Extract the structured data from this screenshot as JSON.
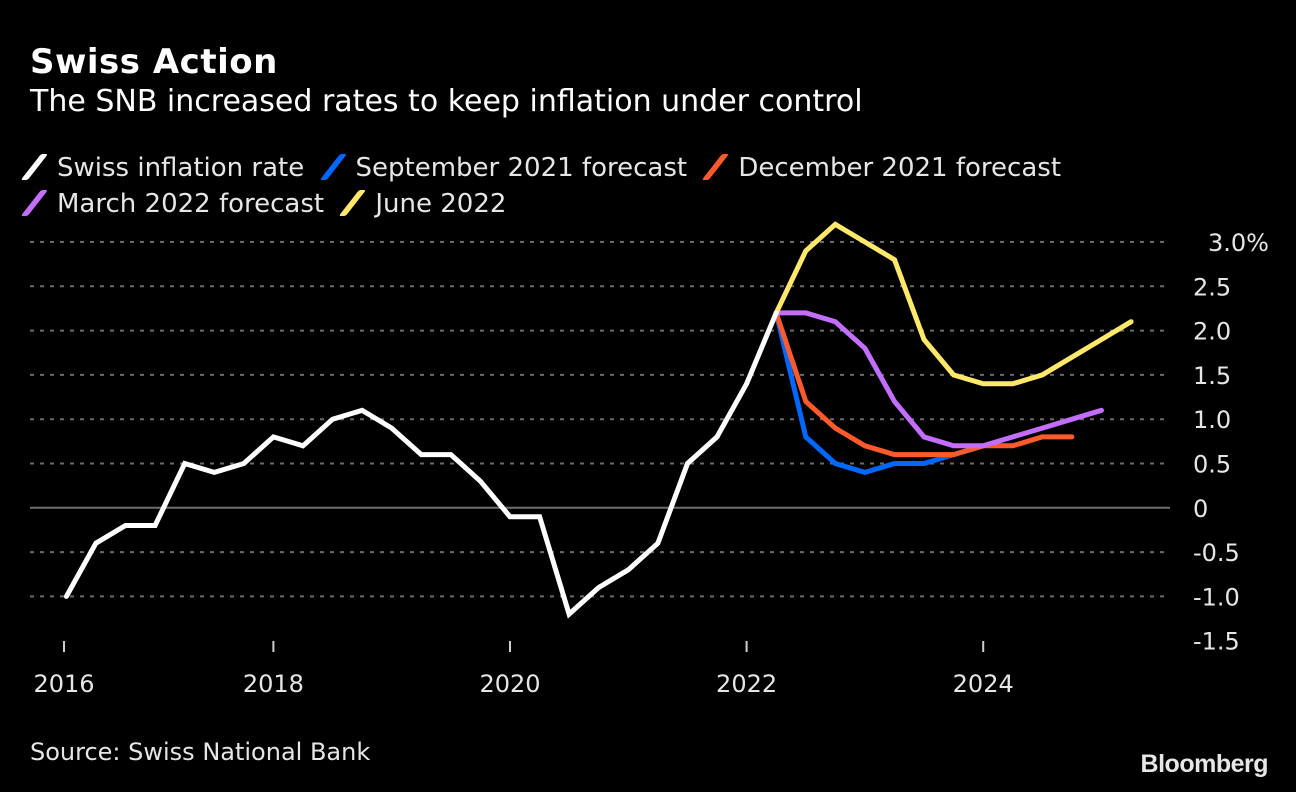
{
  "chart_data": {
    "type": "line",
    "title": "Swiss Action",
    "subtitle": "The SNB increased rates to keep inflation under control",
    "xlabel": "",
    "ylabel": "",
    "y_unit": "%",
    "ylim": [
      -1.5,
      3.0
    ],
    "yticks": [
      3.0,
      2.5,
      2.0,
      1.5,
      1.0,
      0.5,
      0,
      -0.5,
      -1.0,
      -1.5
    ],
    "ytick_labels": [
      "3.0%",
      "2.5",
      "2.0",
      "1.5",
      "1.0",
      "0.5",
      "0",
      "-0.5",
      "-1.0",
      "-1.5"
    ],
    "xticks": [
      2016,
      2018,
      2020,
      2022,
      2024
    ],
    "xtick_labels": [
      "2016",
      "2018",
      "2020",
      "2022",
      "2024"
    ],
    "xlim": [
      2015.75,
      2025.6
    ],
    "grid": true,
    "legend_position": "top-left",
    "x": [
      2016.25,
      2016.5,
      2016.75,
      2017.0,
      2017.25,
      2017.5,
      2017.75,
      2018.0,
      2018.25,
      2018.5,
      2018.75,
      2019.0,
      2019.25,
      2019.5,
      2019.75,
      2020.0,
      2020.25,
      2020.5,
      2020.75,
      2021.0,
      2021.25,
      2021.5,
      2021.75,
      2022.0,
      2022.25,
      2022.5,
      2022.75,
      2023.0,
      2023.25,
      2023.5,
      2023.75,
      2024.0,
      2024.25,
      2024.5,
      2024.75,
      2025.0,
      2025.25
    ],
    "series": [
      {
        "name": "Swiss inflation rate",
        "color": "#ffffff",
        "start_index": 0,
        "values": [
          -1.0,
          -0.4,
          -0.2,
          -0.2,
          0.5,
          0.4,
          0.5,
          0.8,
          0.7,
          1.0,
          1.1,
          0.9,
          0.6,
          0.6,
          0.3,
          -0.1,
          -0.1,
          -1.2,
          -0.9,
          -0.7,
          -0.4,
          0.5,
          0.8,
          1.4,
          2.2
        ]
      },
      {
        "name": "September 2021 forecast",
        "color": "#0068ff",
        "start_index": 24,
        "values": [
          2.2,
          0.8,
          0.5,
          0.4,
          0.5,
          0.5,
          0.6,
          0.7
        ]
      },
      {
        "name": "December 2021 forecast",
        "color": "#ff5a2b",
        "start_index": 24,
        "values": [
          2.2,
          1.2,
          0.9,
          0.7,
          0.6,
          0.6,
          0.6,
          0.7,
          0.7,
          0.8,
          0.8
        ]
      },
      {
        "name": "March 2022 forecast",
        "color": "#c36eff",
        "start_index": 24,
        "values": [
          2.2,
          2.2,
          2.1,
          1.8,
          1.2,
          0.8,
          0.7,
          0.7,
          0.8,
          0.9,
          1.0,
          1.1
        ]
      },
      {
        "name": "June 2022",
        "color": "#ffe86a",
        "start_index": 24,
        "values": [
          2.2,
          2.9,
          3.2,
          3.0,
          2.8,
          1.9,
          1.5,
          1.4,
          1.4,
          1.5,
          1.7,
          1.9,
          2.1
        ]
      }
    ],
    "source": "Source: Swiss National Bank",
    "brand": "Bloomberg"
  }
}
